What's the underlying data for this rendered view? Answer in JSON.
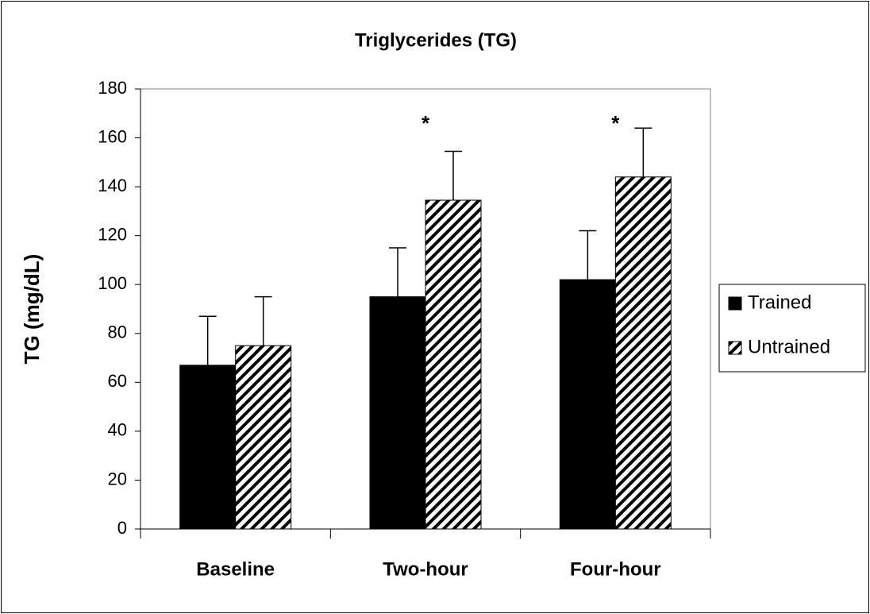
{
  "chart_data": {
    "type": "bar",
    "title": "Triglycerides (TG)",
    "ylabel": "TG (mg/dL)",
    "categories": [
      "Baseline",
      "Two-hour",
      "Four-hour"
    ],
    "series": [
      {
        "name": "Trained",
        "color": "#000000",
        "pattern": "solid",
        "values": [
          67,
          95,
          102
        ],
        "errors": [
          20,
          20,
          20
        ]
      },
      {
        "name": "Untrained",
        "color": "#000000",
        "pattern": "hatched",
        "values": [
          75,
          134.5,
          144
        ],
        "errors": [
          20,
          20,
          20
        ]
      }
    ],
    "significance": [
      null,
      "*",
      "*"
    ],
    "ylim": [
      0,
      180
    ],
    "yticks": [
      0,
      20,
      40,
      60,
      80,
      100,
      120,
      140,
      160,
      180
    ],
    "legend": "right"
  }
}
